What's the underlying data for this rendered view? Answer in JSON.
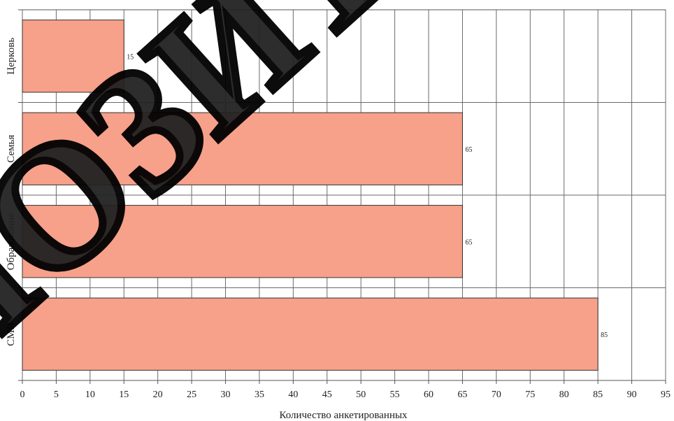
{
  "watermark": "ПОЗИТ",
  "chart_data": {
    "type": "bar",
    "orientation": "horizontal",
    "categories": [
      "Церковь",
      "Семья",
      "Образование",
      "СМИ"
    ],
    "values": [
      15,
      65,
      65,
      85
    ],
    "data_labels": [
      "15",
      "65",
      "65",
      "85"
    ],
    "xlabel": "Количество анкетированных",
    "ylabel": "",
    "xlim": [
      0,
      95
    ],
    "xticks": [
      0,
      5,
      10,
      15,
      20,
      25,
      30,
      35,
      40,
      45,
      50,
      55,
      60,
      65,
      70,
      75,
      80,
      85,
      90,
      95
    ],
    "grid": true,
    "bar_color": "#f7a08a"
  }
}
